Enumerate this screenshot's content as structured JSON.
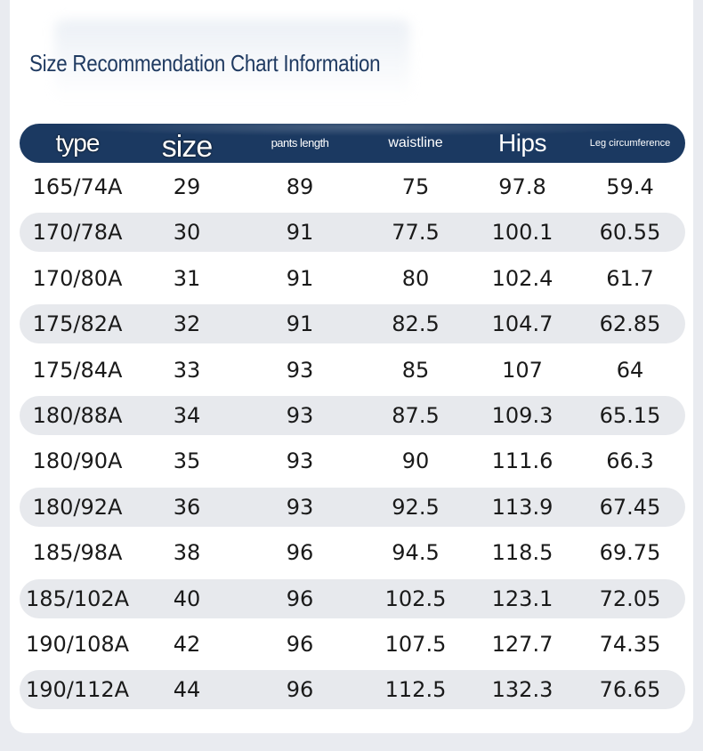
{
  "title": "Size Recommendation Chart Information",
  "headers": {
    "type": "type",
    "size": "size",
    "pants_length": "pants length",
    "waistline": "waistline",
    "hips": "Hips",
    "leg_circumference": "Leg circumference"
  },
  "rows": [
    [
      "165/74A",
      "29",
      "89",
      "75",
      "97.8",
      "59.4"
    ],
    [
      "170/78A",
      "30",
      "91",
      "77.5",
      "100.1",
      "60.55"
    ],
    [
      "170/80A",
      "31",
      "91",
      "80",
      "102.4",
      "61.7"
    ],
    [
      "175/82A",
      "32",
      "91",
      "82.5",
      "104.7",
      "62.85"
    ],
    [
      "175/84A",
      "33",
      "93",
      "85",
      "107",
      "64"
    ],
    [
      "180/88A",
      "34",
      "93",
      "87.5",
      "109.3",
      "65.15"
    ],
    [
      "180/90A",
      "35",
      "93",
      "90",
      "111.6",
      "66.3"
    ],
    [
      "180/92A",
      "36",
      "93",
      "92.5",
      "113.9",
      "67.45"
    ],
    [
      "185/98A",
      "38",
      "96",
      "94.5",
      "118.5",
      "69.75"
    ],
    [
      "185/102A",
      "40",
      "96",
      "102.5",
      "123.1",
      "72.05"
    ],
    [
      "190/108A",
      "42",
      "96",
      "107.5",
      "127.7",
      "74.35"
    ],
    [
      "190/112A",
      "44",
      "96",
      "112.5",
      "132.3",
      "76.65"
    ]
  ],
  "colors": {
    "header_bg": "#1b3961",
    "title": "#1f3a61",
    "row_shade": "#e7e9ed"
  }
}
